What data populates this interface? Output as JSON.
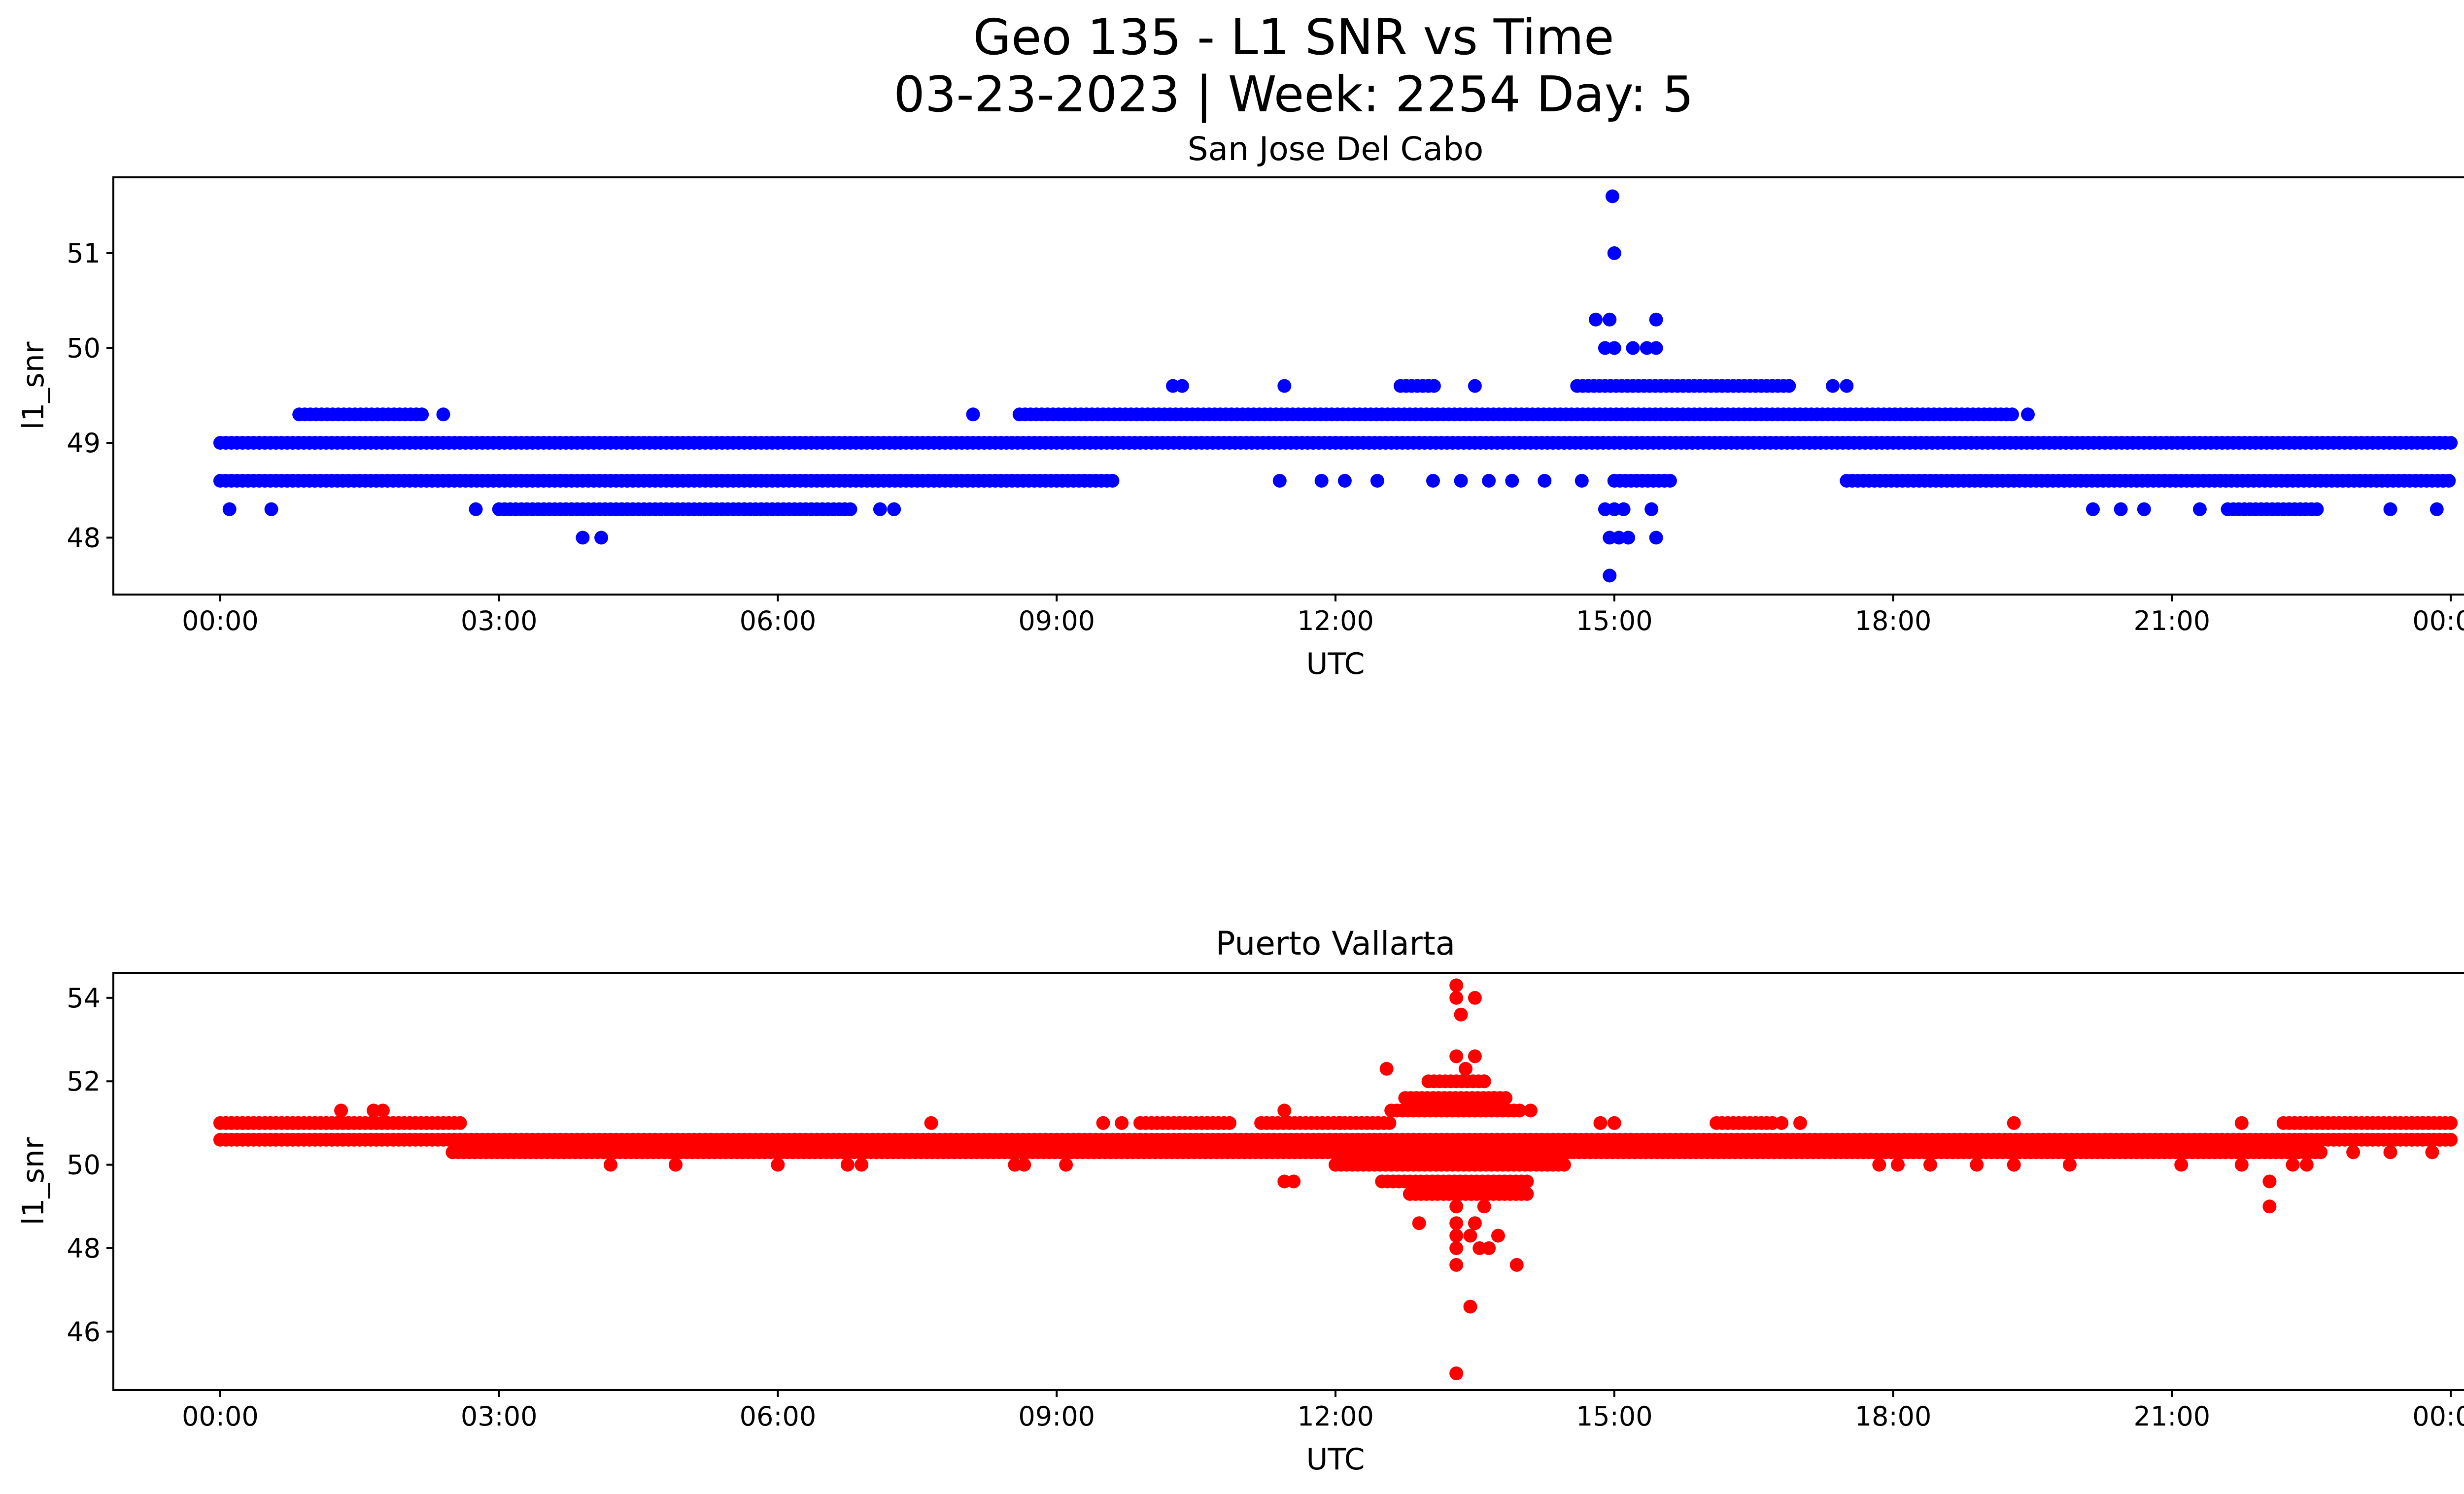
{
  "figure": {
    "title_line1": "Geo 135 - L1 SNR vs Time",
    "title_line2": "03-23-2023 | Week: 2254 Day: 5"
  },
  "chart_data": [
    {
      "type": "scatter",
      "title": "San Jose Del Cabo",
      "xlabel": "UTC",
      "ylabel": "l1_snr",
      "color": "#0000ff",
      "x_unit": "hours UTC",
      "xlim": [
        -1.15,
        25.15
      ],
      "ylim": [
        47.4,
        51.8
      ],
      "xticks": [
        0,
        3,
        6,
        9,
        12,
        15,
        18,
        21,
        24
      ],
      "xtick_labels": [
        "00:00",
        "03:00",
        "06:00",
        "09:00",
        "12:00",
        "15:00",
        "18:00",
        "21:00",
        "00:00"
      ],
      "yticks": [
        48,
        49,
        50,
        51
      ],
      "ytick_labels": [
        "48",
        "49",
        "50",
        "51"
      ],
      "bands": [
        {
          "y": 49.0,
          "start": 0.0,
          "end": 24.0,
          "step": 0.06
        },
        {
          "y": 48.6,
          "start": 0.0,
          "end": 9.6,
          "step": 0.06
        },
        {
          "y": 48.6,
          "start": 15.0,
          "end": 15.6,
          "step": 0.06
        },
        {
          "y": 48.6,
          "start": 17.5,
          "end": 24.0,
          "step": 0.06
        },
        {
          "y": 48.3,
          "start": 3.0,
          "end": 6.8,
          "step": 0.06
        },
        {
          "y": 48.3,
          "start": 21.6,
          "end": 22.6,
          "step": 0.06
        },
        {
          "y": 49.3,
          "start": 8.6,
          "end": 19.3,
          "step": 0.06
        },
        {
          "y": 49.3,
          "start": 0.85,
          "end": 2.2,
          "step": 0.06
        },
        {
          "y": 49.6,
          "start": 14.6,
          "end": 16.9,
          "step": 0.06
        },
        {
          "y": 49.6,
          "start": 12.7,
          "end": 13.1,
          "step": 0.06
        }
      ],
      "points": [
        [
          0.1,
          48.3
        ],
        [
          0.55,
          48.3
        ],
        [
          2.75,
          48.3
        ],
        [
          7.1,
          48.3
        ],
        [
          7.25,
          48.3
        ],
        [
          20.15,
          48.3
        ],
        [
          20.45,
          48.3
        ],
        [
          20.7,
          48.3
        ],
        [
          21.3,
          48.3
        ],
        [
          23.35,
          48.3
        ],
        [
          23.85,
          48.3
        ],
        [
          3.9,
          48.0
        ],
        [
          4.1,
          48.0
        ],
        [
          14.95,
          47.6
        ],
        [
          14.95,
          48.0
        ],
        [
          15.05,
          48.0
        ],
        [
          15.15,
          48.0
        ],
        [
          15.45,
          48.0
        ],
        [
          14.9,
          48.3
        ],
        [
          15.0,
          48.3
        ],
        [
          15.1,
          48.3
        ],
        [
          15.4,
          48.3
        ],
        [
          11.4,
          48.6
        ],
        [
          11.85,
          48.6
        ],
        [
          12.1,
          48.6
        ],
        [
          12.45,
          48.6
        ],
        [
          13.05,
          48.6
        ],
        [
          13.35,
          48.6
        ],
        [
          13.65,
          48.6
        ],
        [
          13.9,
          48.6
        ],
        [
          14.25,
          48.6
        ],
        [
          14.65,
          48.6
        ],
        [
          10.25,
          49.6
        ],
        [
          10.35,
          49.6
        ],
        [
          11.45,
          49.6
        ],
        [
          13.5,
          49.6
        ],
        [
          17.35,
          49.6
        ],
        [
          17.5,
          49.6
        ],
        [
          8.1,
          49.3
        ],
        [
          2.4,
          49.3
        ],
        [
          19.45,
          49.3
        ],
        [
          14.8,
          50.3
        ],
        [
          14.95,
          50.3
        ],
        [
          15.45,
          50.3
        ],
        [
          14.9,
          50.0
        ],
        [
          15.0,
          50.0
        ],
        [
          15.2,
          50.0
        ],
        [
          15.35,
          50.0
        ],
        [
          15.45,
          50.0
        ],
        [
          15.0,
          51.0
        ],
        [
          14.98,
          51.6
        ]
      ]
    },
    {
      "type": "scatter",
      "title": "Puerto Vallarta",
      "xlabel": "UTC",
      "ylabel": "l1_snr",
      "color": "#ff0000",
      "x_unit": "hours UTC",
      "xlim": [
        -1.15,
        25.15
      ],
      "ylim": [
        44.6,
        54.6
      ],
      "xticks": [
        0,
        3,
        6,
        9,
        12,
        15,
        18,
        21,
        24
      ],
      "xtick_labels": [
        "00:00",
        "03:00",
        "06:00",
        "09:00",
        "12:00",
        "15:00",
        "18:00",
        "21:00",
        "00:00"
      ],
      "yticks": [
        46,
        48,
        50,
        52,
        54
      ],
      "ytick_labels": [
        "46",
        "48",
        "50",
        "52",
        "54"
      ],
      "bands": [
        {
          "y": 50.6,
          "start": 0.0,
          "end": 24.0,
          "step": 0.06
        },
        {
          "y": 50.3,
          "start": 2.5,
          "end": 22.6,
          "step": 0.06
        },
        {
          "y": 51.0,
          "start": 0.0,
          "end": 2.6,
          "step": 0.06
        },
        {
          "y": 51.0,
          "start": 22.2,
          "end": 24.0,
          "step": 0.06
        },
        {
          "y": 51.0,
          "start": 9.9,
          "end": 10.9,
          "step": 0.06
        },
        {
          "y": 51.0,
          "start": 11.2,
          "end": 12.6,
          "step": 0.06
        },
        {
          "y": 51.0,
          "start": 16.1,
          "end": 16.7,
          "step": 0.06
        },
        {
          "y": 50.0,
          "start": 12.0,
          "end": 14.5,
          "step": 0.06
        },
        {
          "y": 49.6,
          "start": 12.5,
          "end": 14.1,
          "step": 0.06
        },
        {
          "y": 51.3,
          "start": 12.6,
          "end": 14.0,
          "step": 0.06
        },
        {
          "y": 51.6,
          "start": 12.75,
          "end": 13.85,
          "step": 0.06
        },
        {
          "y": 49.3,
          "start": 12.8,
          "end": 14.1,
          "step": 0.06
        },
        {
          "y": 52.0,
          "start": 13.0,
          "end": 13.6,
          "step": 0.06
        }
      ],
      "points": [
        [
          4.2,
          50.0
        ],
        [
          4.9,
          50.0
        ],
        [
          6.0,
          50.0
        ],
        [
          6.75,
          50.0
        ],
        [
          6.9,
          50.0
        ],
        [
          8.55,
          50.0
        ],
        [
          8.65,
          50.0
        ],
        [
          9.1,
          50.0
        ],
        [
          17.85,
          50.0
        ],
        [
          18.05,
          50.0
        ],
        [
          18.4,
          50.0
        ],
        [
          18.9,
          50.0
        ],
        [
          19.3,
          50.0
        ],
        [
          19.9,
          50.0
        ],
        [
          21.1,
          50.0
        ],
        [
          21.75,
          50.0
        ],
        [
          9.5,
          51.0
        ],
        [
          9.7,
          51.0
        ],
        [
          12.05,
          51.0
        ],
        [
          14.85,
          51.0
        ],
        [
          15.0,
          51.0
        ],
        [
          16.8,
          51.0
        ],
        [
          17.0,
          51.0
        ],
        [
          19.3,
          51.0
        ],
        [
          1.3,
          51.3
        ],
        [
          1.65,
          51.3
        ],
        [
          1.75,
          51.3
        ],
        [
          7.65,
          51.0
        ],
        [
          21.75,
          51.0
        ],
        [
          11.45,
          51.3
        ],
        [
          11.45,
          49.6
        ],
        [
          11.55,
          49.6
        ],
        [
          12.55,
          52.3
        ],
        [
          13.3,
          52.6
        ],
        [
          13.5,
          52.6
        ],
        [
          13.4,
          52.3
        ],
        [
          13.6,
          52.0
        ],
        [
          13.7,
          51.6
        ],
        [
          14.1,
          51.3
        ],
        [
          13.3,
          54.3
        ],
        [
          13.3,
          54.0
        ],
        [
          13.5,
          54.0
        ],
        [
          13.35,
          53.6
        ],
        [
          12.9,
          48.6
        ],
        [
          13.3,
          48.6
        ],
        [
          13.5,
          48.6
        ],
        [
          13.3,
          48.3
        ],
        [
          13.45,
          48.3
        ],
        [
          13.3,
          48.0
        ],
        [
          13.55,
          48.0
        ],
        [
          13.65,
          48.0
        ],
        [
          13.75,
          48.3
        ],
        [
          13.3,
          47.6
        ],
        [
          13.95,
          47.6
        ],
        [
          13.3,
          49.0
        ],
        [
          13.6,
          49.0
        ],
        [
          13.45,
          46.6
        ],
        [
          13.3,
          45.0
        ],
        [
          22.05,
          49.6
        ],
        [
          22.05,
          49.0
        ],
        [
          22.3,
          50.0
        ],
        [
          22.45,
          50.0
        ],
        [
          22.95,
          50.3
        ],
        [
          23.35,
          50.3
        ],
        [
          23.8,
          50.3
        ]
      ]
    }
  ]
}
